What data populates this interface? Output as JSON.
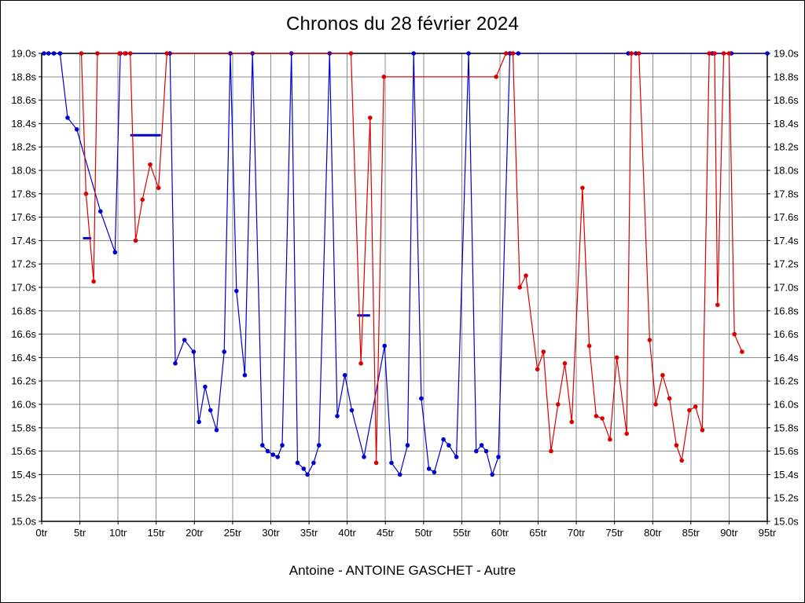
{
  "page": {
    "title": "Chronos du 28 février 2024",
    "subtitle": "Antoine - ANTOINE GASCHET - Autre"
  },
  "chart_data": {
    "type": "line",
    "title": "Chronos du 28 février 2024",
    "subtitle": "Antoine - ANTOINE GASCHET - Autre",
    "xlabel": "",
    "ylabel": "",
    "x_unit": "tr",
    "y_unit": "s",
    "xlim": [
      0,
      95
    ],
    "ylim": [
      15.0,
      19.0
    ],
    "grid": true,
    "legend": "none",
    "x_tick_values": [
      0,
      5,
      10,
      15,
      20,
      25,
      30,
      35,
      40,
      45,
      50,
      55,
      60,
      65,
      70,
      75,
      80,
      85,
      90,
      95
    ],
    "x_tick_labels": [
      "0tr",
      "5tr",
      "10tr",
      "15tr",
      "20tr",
      "25tr",
      "30tr",
      "35tr",
      "40tr",
      "45tr",
      "50tr",
      "55tr",
      "60tr",
      "65tr",
      "70tr",
      "75tr",
      "80tr",
      "85tr",
      "90tr",
      "95tr"
    ],
    "y_tick_values": [
      19.0,
      18.8,
      18.6,
      18.4,
      18.2,
      18.0,
      17.8,
      17.6,
      17.4,
      17.2,
      17.0,
      16.8,
      16.6,
      16.4,
      16.2,
      16.0,
      15.8,
      15.6,
      15.4,
      15.2,
      15.0
    ],
    "y_tick_labels": [
      "19.0s",
      "18.8s",
      "18.6s",
      "18.4s",
      "18.2s",
      "18.0s",
      "17.8s",
      "17.6s",
      "17.4s",
      "17.2s",
      "17.0s",
      "16.8s",
      "16.6s",
      "16.4s",
      "16.2s",
      "16.0s",
      "15.8s",
      "15.6s",
      "15.4s",
      "15.2s",
      "15.0s"
    ],
    "series": [
      {
        "name": "blue",
        "color": "#0000cd",
        "points": [
          [
            0.3,
            19
          ],
          [
            0.9,
            19
          ],
          [
            1.6,
            19
          ],
          [
            2.4,
            19
          ],
          [
            3.4,
            18.45
          ],
          [
            4.6,
            18.35
          ],
          [
            7.7,
            17.65
          ],
          [
            9.6,
            17.3
          ],
          [
            10.3,
            19
          ],
          [
            11.0,
            19
          ],
          [
            16.8,
            19
          ],
          [
            17.5,
            16.35
          ],
          [
            18.7,
            16.55
          ],
          [
            19.9,
            16.45
          ],
          [
            20.6,
            15.85
          ],
          [
            21.4,
            16.15
          ],
          [
            22.1,
            15.95
          ],
          [
            22.9,
            15.78
          ],
          [
            23.9,
            16.45
          ],
          [
            24.7,
            19
          ],
          [
            25.5,
            16.97
          ],
          [
            26.6,
            16.25
          ],
          [
            27.6,
            19
          ],
          [
            28.9,
            15.65
          ],
          [
            29.6,
            15.6
          ],
          [
            30.3,
            15.57
          ],
          [
            30.9,
            15.55
          ],
          [
            31.5,
            15.65
          ],
          [
            32.7,
            19
          ],
          [
            33.5,
            15.5
          ],
          [
            34.3,
            15.45
          ],
          [
            34.8,
            15.4
          ],
          [
            35.6,
            15.5
          ],
          [
            36.3,
            15.65
          ],
          [
            37.7,
            19
          ],
          [
            38.7,
            15.9
          ],
          [
            39.7,
            16.25
          ],
          [
            40.6,
            15.95
          ],
          [
            42.2,
            15.55
          ],
          [
            44.9,
            16.5
          ],
          [
            45.8,
            15.5
          ],
          [
            46.9,
            15.4
          ],
          [
            47.9,
            15.65
          ],
          [
            48.7,
            19
          ],
          [
            49.7,
            16.05
          ],
          [
            50.7,
            15.45
          ],
          [
            51.4,
            15.42
          ],
          [
            52.6,
            15.7
          ],
          [
            53.3,
            15.65
          ],
          [
            54.3,
            15.55
          ],
          [
            55.9,
            19
          ],
          [
            56.9,
            15.6
          ],
          [
            57.6,
            15.65
          ],
          [
            58.2,
            15.6
          ],
          [
            59.0,
            15.4
          ],
          [
            59.8,
            15.55
          ],
          [
            61.3,
            19
          ],
          [
            62.4,
            19
          ],
          [
            76.8,
            19
          ],
          [
            77.8,
            19
          ],
          [
            87.8,
            19
          ],
          [
            90.3,
            19
          ],
          [
            95,
            19
          ]
        ]
      },
      {
        "name": "red",
        "color": "#dd0000",
        "points": [
          [
            5.2,
            19
          ],
          [
            5.8,
            17.8
          ],
          [
            6.8,
            17.05
          ],
          [
            7.3,
            19
          ],
          [
            10.2,
            19
          ],
          [
            10.9,
            19
          ],
          [
            11.6,
            19
          ],
          [
            12.3,
            17.4
          ],
          [
            13.2,
            17.75
          ],
          [
            14.2,
            18.05
          ],
          [
            15.3,
            17.85
          ],
          [
            16.4,
            19
          ],
          [
            40.5,
            19
          ],
          [
            41.8,
            16.35
          ],
          [
            43.0,
            18.45
          ],
          [
            43.8,
            15.5
          ],
          [
            44.8,
            18.8
          ],
          [
            59.5,
            18.8
          ],
          [
            60.8,
            19
          ],
          [
            61.7,
            19
          ],
          [
            62.6,
            17.0
          ],
          [
            63.4,
            17.1
          ],
          [
            64.9,
            16.3
          ],
          [
            65.7,
            16.45
          ],
          [
            66.7,
            15.6
          ],
          [
            67.6,
            16.0
          ],
          [
            68.5,
            16.35
          ],
          [
            69.4,
            15.85
          ],
          [
            70.8,
            17.85
          ],
          [
            71.7,
            16.5
          ],
          [
            72.6,
            15.9
          ],
          [
            73.4,
            15.88
          ],
          [
            74.4,
            15.7
          ],
          [
            75.3,
            16.4
          ],
          [
            76.6,
            15.75
          ],
          [
            77.2,
            19
          ],
          [
            78.2,
            19
          ],
          [
            79.6,
            16.55
          ],
          [
            80.4,
            16.0
          ],
          [
            81.3,
            16.25
          ],
          [
            82.2,
            16.05
          ],
          [
            83.1,
            15.65
          ],
          [
            83.8,
            15.52
          ],
          [
            84.8,
            15.95
          ],
          [
            85.6,
            15.98
          ],
          [
            86.5,
            15.78
          ],
          [
            87.4,
            19
          ],
          [
            88.1,
            19
          ],
          [
            88.5,
            16.85
          ],
          [
            89.3,
            19
          ],
          [
            90.0,
            19
          ],
          [
            90.7,
            16.6
          ],
          [
            91.7,
            16.45
          ]
        ]
      }
    ],
    "marker_segments": [
      {
        "color": "#0000cd",
        "x1": 5.4,
        "x2": 6.5,
        "y": 17.42
      },
      {
        "color": "#0000cd",
        "x1": 11.6,
        "x2": 15.6,
        "y": 18.3
      },
      {
        "color": "#0000cd",
        "x1": 41.3,
        "x2": 43.0,
        "y": 16.76
      }
    ]
  }
}
